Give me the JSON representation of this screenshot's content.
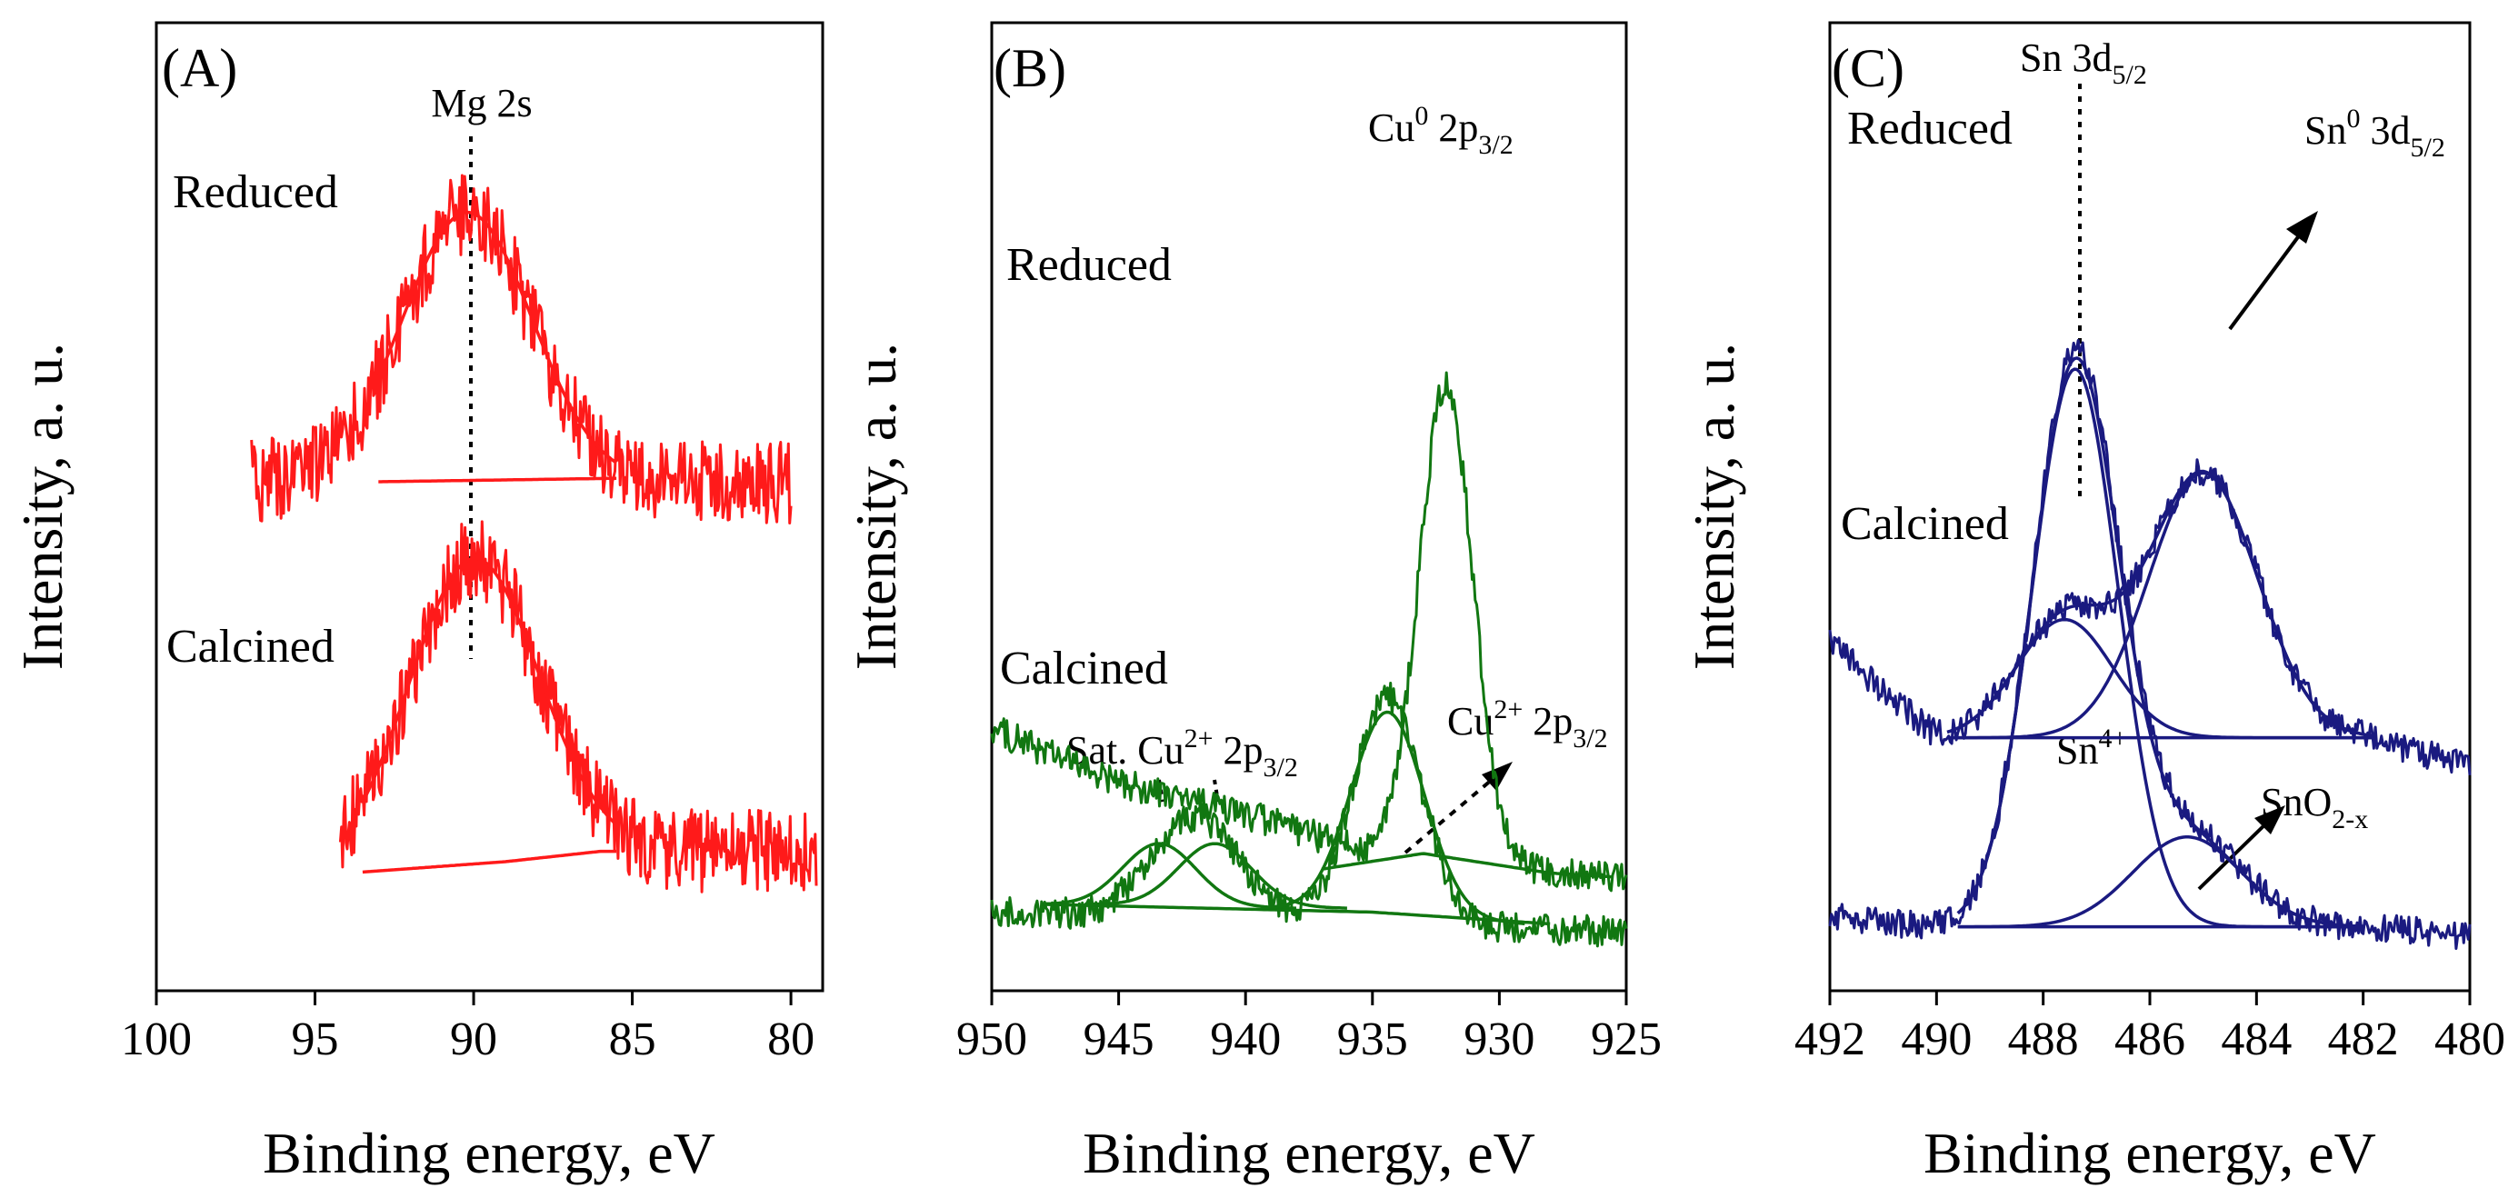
{
  "chart_data": [
    {
      "type": "line",
      "panel_label": "(A)",
      "xlabel": "Binding energy, eV",
      "ylabel": "Intensity, a. u.",
      "xlim": [
        100,
        79
      ],
      "x_reversed": true,
      "xticks": [
        100,
        95,
        90,
        85,
        80
      ],
      "color": "#ff1a1a",
      "trace_labels": [
        "Reduced",
        "Calcined"
      ],
      "peak_annotation": "Mg 2s",
      "reference_line_x": 90.1,
      "series": [
        {
          "trace": "Reduced",
          "kind": "raw",
          "x_range": [
            97,
            80
          ],
          "noise": 0.12,
          "baseline": [
            [
              97,
              0.2
            ],
            [
              80,
              0.2
            ]
          ],
          "peaks": [
            {
              "center": 90.2,
              "amp": 0.78,
              "fwhm": 4.8
            }
          ]
        },
        {
          "trace": "Reduced",
          "kind": "fit",
          "x_range": [
            93,
            85.5
          ],
          "baseline": [
            [
              93,
              0.2
            ],
            [
              85.5,
              0.2
            ]
          ],
          "peaks": [
            {
              "center": 90.2,
              "amp": 0.78,
              "fwhm": 4.8
            }
          ]
        },
        {
          "trace": "Reduced",
          "kind": "baseline",
          "x_range": [
            93,
            85.5
          ],
          "baseline": [
            [
              93,
              0.2
            ],
            [
              85.5,
              0.21
            ]
          ],
          "peaks": []
        },
        {
          "trace": "Calcined",
          "kind": "raw",
          "x_range": [
            94.2,
            79.2
          ],
          "noise": 0.12,
          "baseline": [
            [
              94.2,
              0.12
            ],
            [
              86,
              0.18
            ],
            [
              79.2,
              0.18
            ]
          ],
          "peaks": [
            {
              "center": 90.0,
              "amp": 0.88,
              "fwhm": 4.8
            }
          ]
        },
        {
          "trace": "Calcined",
          "kind": "fit",
          "x_range": [
            93.5,
            85.5
          ],
          "baseline": [
            [
              93.5,
              0.12
            ],
            [
              86,
              0.18
            ],
            [
              85.5,
              0.18
            ]
          ],
          "peaks": [
            {
              "center": 90.0,
              "amp": 0.88,
              "fwhm": 4.8
            }
          ]
        },
        {
          "trace": "Calcined",
          "kind": "baseline",
          "x_range": [
            93.5,
            85.5
          ],
          "baseline": [
            [
              93.5,
              0.12
            ],
            [
              89,
              0.15
            ],
            [
              86,
              0.18
            ],
            [
              85.5,
              0.18
            ]
          ],
          "peaks": []
        }
      ],
      "offsets": {
        "Reduced": 1.05,
        "Calcined": 0.0
      }
    },
    {
      "type": "line",
      "panel_label": "(B)",
      "xlabel": "Binding energy, eV",
      "ylabel": "Intensity, a. u.",
      "xlim": [
        950,
        925
      ],
      "x_reversed": true,
      "xticks": [
        950,
        945,
        940,
        935,
        930,
        925
      ],
      "color": "#117711",
      "trace_labels": [
        "Reduced",
        "Calcined"
      ],
      "annotations": {
        "reduced_peak": {
          "main": "Cu",
          "sup": "0",
          "rest": " 2p",
          "sub": "3/2"
        },
        "calcined_peak": {
          "main": "Cu",
          "sup": "2+",
          "rest": " 2p",
          "sub": "3/2"
        },
        "satellite": {
          "main": "Sat. Cu",
          "sup": "2+",
          "rest": " 2p",
          "sub": "3/2"
        }
      },
      "series": [
        {
          "trace": "Reduced",
          "kind": "raw",
          "x_range": [
            950,
            925
          ],
          "noise": 0.04,
          "baseline": [
            [
              950,
              0.62
            ],
            [
              945,
              0.48
            ],
            [
              940,
              0.4
            ],
            [
              935,
              0.3
            ],
            [
              930,
              0.26
            ],
            [
              925,
              0.24
            ]
          ],
          "peaks": [
            {
              "center": 932.1,
              "amp": 1.22,
              "fwhm": 2.5
            }
          ]
        },
        {
          "trace": "Reduced",
          "kind": "baseline",
          "x_range": [
            937,
            925.5
          ],
          "baseline": [
            [
              937,
              0.26
            ],
            [
              933,
              0.3
            ],
            [
              928,
              0.25
            ],
            [
              925.5,
              0.24
            ]
          ],
          "peaks": []
        },
        {
          "trace": "Calcined",
          "kind": "raw",
          "x_range": [
            950,
            925
          ],
          "noise": 0.04,
          "baseline": [
            [
              950,
              0.15
            ],
            [
              925,
              0.1
            ]
          ],
          "peaks": [
            {
              "center": 934.4,
              "amp": 0.58,
              "fwhm": 3.2
            },
            {
              "center": 942.0,
              "amp": 0.26,
              "fwhm": 4.0
            }
          ]
        },
        {
          "trace": "Calcined",
          "kind": "fit",
          "x_range": [
            948,
            938
          ],
          "baseline": [
            [
              948,
              0.17
            ],
            [
              938,
              0.16
            ]
          ],
          "peaks": [
            {
              "center": 943.4,
              "amp": 0.16,
              "fwhm": 3.4
            }
          ]
        },
        {
          "trace": "Calcined",
          "kind": "fit",
          "x_range": [
            946,
            936
          ],
          "baseline": [
            [
              946,
              0.17
            ],
            [
              936,
              0.16
            ]
          ],
          "peaks": [
            {
              "center": 941.2,
              "amp": 0.16,
              "fwhm": 3.4
            }
          ]
        },
        {
          "trace": "Calcined",
          "kind": "fit",
          "x_range": [
            939,
            929
          ],
          "baseline": [
            [
              939,
              0.16
            ],
            [
              929,
              0.12
            ]
          ],
          "peaks": [
            {
              "center": 934.4,
              "amp": 0.52,
              "fwhm": 3.4
            }
          ]
        },
        {
          "trace": "Calcined",
          "kind": "baseline",
          "x_range": [
            948,
            928
          ],
          "baseline": [
            [
              948,
              0.17
            ],
            [
              935,
              0.15
            ],
            [
              928,
              0.12
            ]
          ],
          "peaks": []
        }
      ],
      "offsets": {
        "Reduced": 0.0,
        "Calcined": 0.0
      }
    },
    {
      "type": "line",
      "panel_label": "(C)",
      "xlabel": "Binding energy, eV",
      "ylabel": "Intensity, a. u.",
      "xlim": [
        492,
        480
      ],
      "x_reversed": true,
      "xticks": [
        492,
        490,
        488,
        486,
        484,
        482,
        480
      ],
      "color": "#1a1a80",
      "trace_labels": [
        "Reduced",
        "Calcined"
      ],
      "reference_line_x": 487.4,
      "annotations": {
        "ref_label": {
          "main": "Sn 3d",
          "sub": "5/2"
        },
        "metal": {
          "main": "Sn",
          "sup": "0",
          "rest": " 3d",
          "sub": "5/2"
        },
        "oxide": {
          "main": "Sn",
          "sup": "4+"
        },
        "defect": {
          "main": "SnO",
          "sub": "2-x"
        }
      },
      "series": [
        {
          "trace": "Reduced",
          "kind": "raw",
          "x_range": [
            492,
            480
          ],
          "noise": 0.03,
          "baseline": [
            [
              492,
              0.62
            ],
            [
              490,
              0.42
            ],
            [
              488,
              0.42
            ],
            [
              484,
              0.42
            ],
            [
              482,
              0.42
            ],
            [
              480,
              0.36
            ]
          ],
          "peaks": [
            {
              "center": 487.6,
              "amp": 0.25,
              "fwhm": 2.1
            },
            {
              "center": 485.0,
              "amp": 0.56,
              "fwhm": 2.4
            }
          ]
        },
        {
          "trace": "Reduced",
          "kind": "fit",
          "x_range": [
            489.8,
            481.8
          ],
          "baseline": [
            [
              489.8,
              0.42
            ],
            [
              481.8,
              0.42
            ]
          ],
          "peaks": [
            {
              "center": 487.6,
              "amp": 0.25,
              "fwhm": 2.1
            },
            {
              "center": 485.0,
              "amp": 0.56,
              "fwhm": 2.4
            }
          ]
        },
        {
          "trace": "Reduced",
          "kind": "fit",
          "x_range": [
            489.8,
            481.8
          ],
          "baseline": [
            [
              489.8,
              0.42
            ],
            [
              481.8,
              0.42
            ]
          ],
          "peaks": [
            {
              "center": 487.6,
              "amp": 0.25,
              "fwhm": 2.1
            }
          ]
        },
        {
          "trace": "Reduced",
          "kind": "fit",
          "x_range": [
            489.8,
            481.8
          ],
          "baseline": [
            [
              489.8,
              0.42
            ],
            [
              481.8,
              0.42
            ]
          ],
          "peaks": [
            {
              "center": 485.0,
              "amp": 0.56,
              "fwhm": 2.4
            }
          ]
        },
        {
          "trace": "Reduced",
          "kind": "baseline",
          "x_range": [
            489.8,
            481.8
          ],
          "baseline": [
            [
              489.8,
              0.42
            ],
            [
              481.8,
              0.42
            ]
          ],
          "peaks": []
        },
        {
          "trace": "Calcined",
          "kind": "raw",
          "x_range": [
            492,
            480
          ],
          "noise": 0.03,
          "baseline": [
            [
              492,
              0.04
            ],
            [
              490,
              0.02
            ],
            [
              482,
              0.02
            ],
            [
              480,
              0.0
            ]
          ],
          "peaks": [
            {
              "center": 487.4,
              "amp": 1.2,
              "fwhm": 1.9
            },
            {
              "center": 485.3,
              "amp": 0.2,
              "fwhm": 2.4
            }
          ]
        },
        {
          "trace": "Calcined",
          "kind": "fit",
          "x_range": [
            489.6,
            482
          ],
          "baseline": [
            [
              489.6,
              0.02
            ],
            [
              482,
              0.02
            ]
          ],
          "peaks": [
            {
              "center": 487.4,
              "amp": 1.18,
              "fwhm": 1.9
            },
            {
              "center": 485.3,
              "amp": 0.19,
              "fwhm": 2.4
            }
          ]
        },
        {
          "trace": "Calcined",
          "kind": "fit",
          "x_range": [
            489.6,
            482
          ],
          "baseline": [
            [
              489.6,
              0.02
            ],
            [
              482,
              0.02
            ]
          ],
          "peaks": [
            {
              "center": 487.4,
              "amp": 1.18,
              "fwhm": 1.9
            }
          ]
        },
        {
          "trace": "Calcined",
          "kind": "fit",
          "x_range": [
            489.6,
            482
          ],
          "baseline": [
            [
              489.6,
              0.02
            ],
            [
              482,
              0.02
            ]
          ],
          "peaks": [
            {
              "center": 485.3,
              "amp": 0.19,
              "fwhm": 2.4
            }
          ]
        },
        {
          "trace": "Calcined",
          "kind": "baseline",
          "x_range": [
            489.6,
            482
          ],
          "baseline": [
            [
              489.6,
              0.02
            ],
            [
              482,
              0.02
            ]
          ],
          "peaks": []
        }
      ],
      "offsets": {
        "Reduced": 0.0,
        "Calcined": 0.0
      }
    }
  ]
}
